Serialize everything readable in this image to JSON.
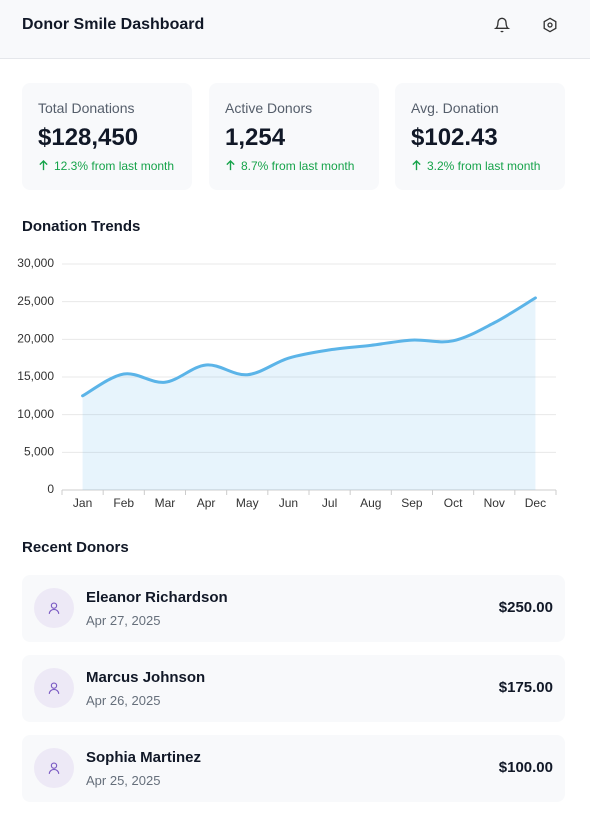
{
  "header": {
    "title": "Donor Smile Dashboard"
  },
  "stats": [
    {
      "label": "Total Donations",
      "value": "$128,450",
      "change": "12.3% from last month"
    },
    {
      "label": "Active Donors",
      "value": "1,254",
      "change": "8.7% from last month"
    },
    {
      "label": "Avg. Donation",
      "value": "$102.43",
      "change": "3.2% from last month"
    }
  ],
  "chart_data": {
    "type": "area",
    "title": "Donation Trends",
    "categories": [
      "Jan",
      "Feb",
      "Mar",
      "Apr",
      "May",
      "Jun",
      "Jul",
      "Aug",
      "Sep",
      "Oct",
      "Nov",
      "Dec"
    ],
    "values": [
      12500,
      15400,
      14300,
      16600,
      15300,
      17500,
      18600,
      19200,
      19900,
      19800,
      22200,
      25500
    ],
    "color": "#5bb4e8",
    "ylim": [
      0,
      30000
    ],
    "yticks": [
      0,
      {
        "value": 5000,
        "label": "5,000"
      },
      {
        "value": 10000,
        "label": "10,000"
      },
      {
        "value": 15000,
        "label": "15,000"
      },
      {
        "value": 20000,
        "label": "20,000"
      },
      {
        "value": 25000,
        "label": "25,000"
      },
      {
        "value": 30000,
        "label": "30,000"
      }
    ],
    "grid": true
  },
  "recent_donors": {
    "title": "Recent Donors",
    "donors": [
      {
        "name": "Eleanor Richardson",
        "date": "Apr 27, 2025",
        "amount": "$250.00"
      },
      {
        "name": "Marcus Johnson",
        "date": "Apr 26, 2025",
        "amount": "$175.00"
      },
      {
        "name": "Sophia Martinez",
        "date": "Apr 25, 2025",
        "amount": "$100.00"
      }
    ]
  }
}
